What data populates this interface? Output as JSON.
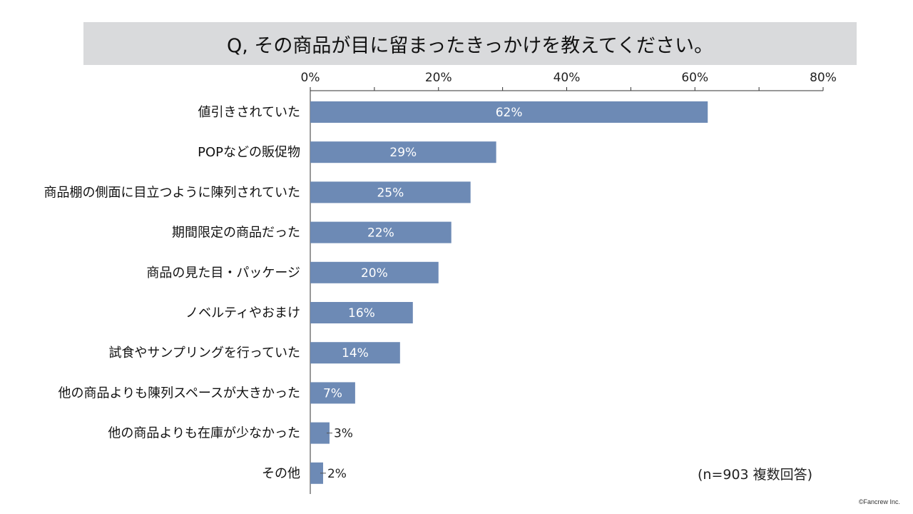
{
  "title": "Q, その商品が目に留まったきっかけを教えてください。",
  "note": "(n=903 複数回答)",
  "copyright": "©Fancrew Inc.",
  "colors": {
    "bar": "#6d8ab5",
    "axis": "#333333",
    "title_bg": "#d9dadc"
  },
  "chart_data": {
    "type": "bar",
    "orientation": "horizontal",
    "title": "Q, その商品が目に留まったきっかけを教えてください。",
    "xlim": [
      0,
      80
    ],
    "x_ticks": [
      0,
      20,
      40,
      60,
      80
    ],
    "x_tick_labels": [
      "0%",
      "20%",
      "40%",
      "60%",
      "80%"
    ],
    "axis_position": "top",
    "grid": false,
    "categories": [
      "値引きされていた",
      "POPなどの販促物",
      "商品棚の側面に目立つように陳列されていた",
      "期間限定の商品だった",
      "商品の見た目・パッケージ",
      "ノベルティやおまけ",
      "試食やサンプリングを行っていた",
      "他の商品よりも陳列スペースが大きかった",
      "他の商品よりも在庫が少なかった",
      "その他"
    ],
    "values": [
      62,
      29,
      25,
      22,
      20,
      16,
      14,
      7,
      3,
      2
    ],
    "value_labels": [
      "62%",
      "29%",
      "25%",
      "22%",
      "20%",
      "16%",
      "14%",
      "7%",
      "3%",
      "2%"
    ]
  }
}
